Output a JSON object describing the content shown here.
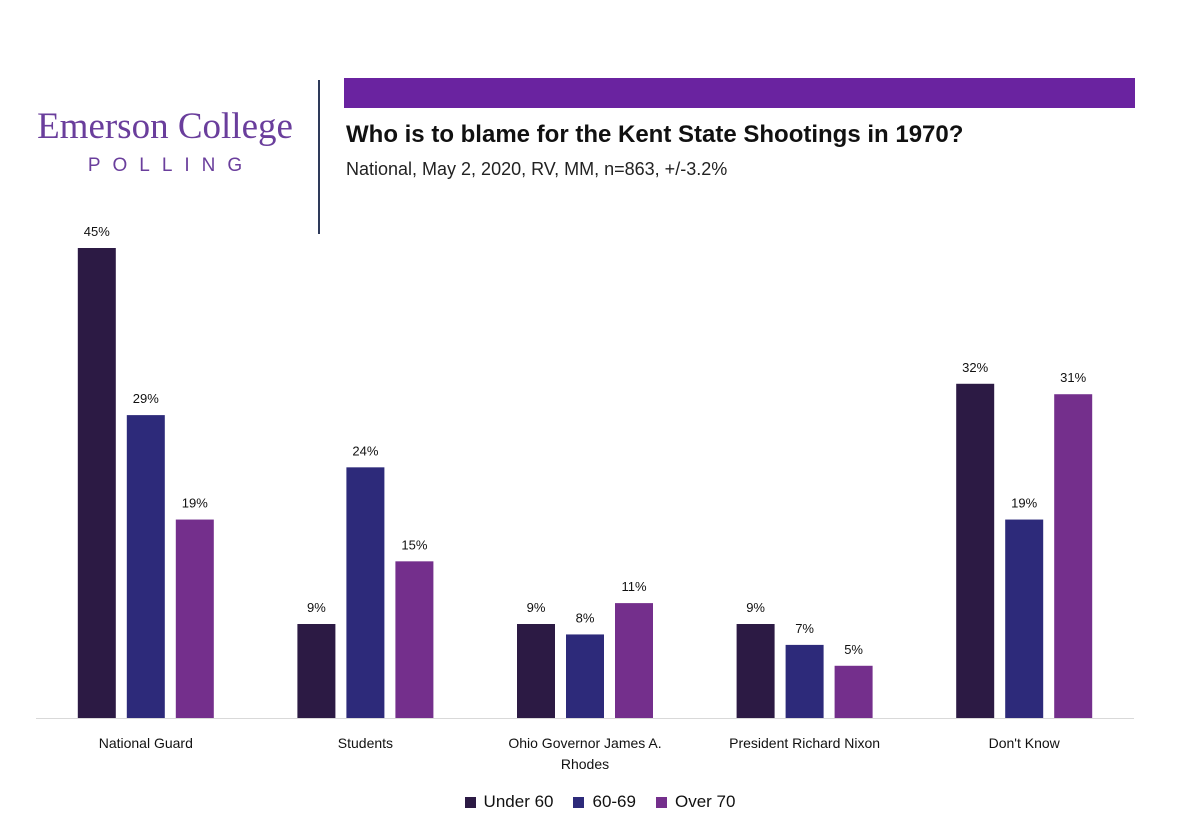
{
  "logo": {
    "name": "Emerson College",
    "sub": "POLLING"
  },
  "colors": {
    "brand": "#6a3e9c",
    "banner": "#6a23a0"
  },
  "chart_data": {
    "type": "bar",
    "title": "Who is to blame for the Kent State Shootings in 1970?",
    "subtitle": "National, May 2, 2020, RV, MM, n=863, +/-3.2%",
    "categories": [
      "National Guard",
      "Students",
      "Ohio Governor James A. Rhodes",
      "President Richard Nixon",
      "Don't Know"
    ],
    "series": [
      {
        "name": "Under 60",
        "color": "#2c1a44",
        "values": [
          45,
          9,
          9,
          9,
          32
        ]
      },
      {
        "name": "60-69",
        "color": "#2d2a7a",
        "values": [
          29,
          24,
          8,
          7,
          19
        ]
      },
      {
        "name": "Over 70",
        "color": "#742f8c",
        "values": [
          19,
          15,
          11,
          5,
          31
        ]
      }
    ],
    "value_suffix": "%",
    "ylim": [
      0,
      45
    ],
    "grid": false,
    "legend": "bottom"
  }
}
